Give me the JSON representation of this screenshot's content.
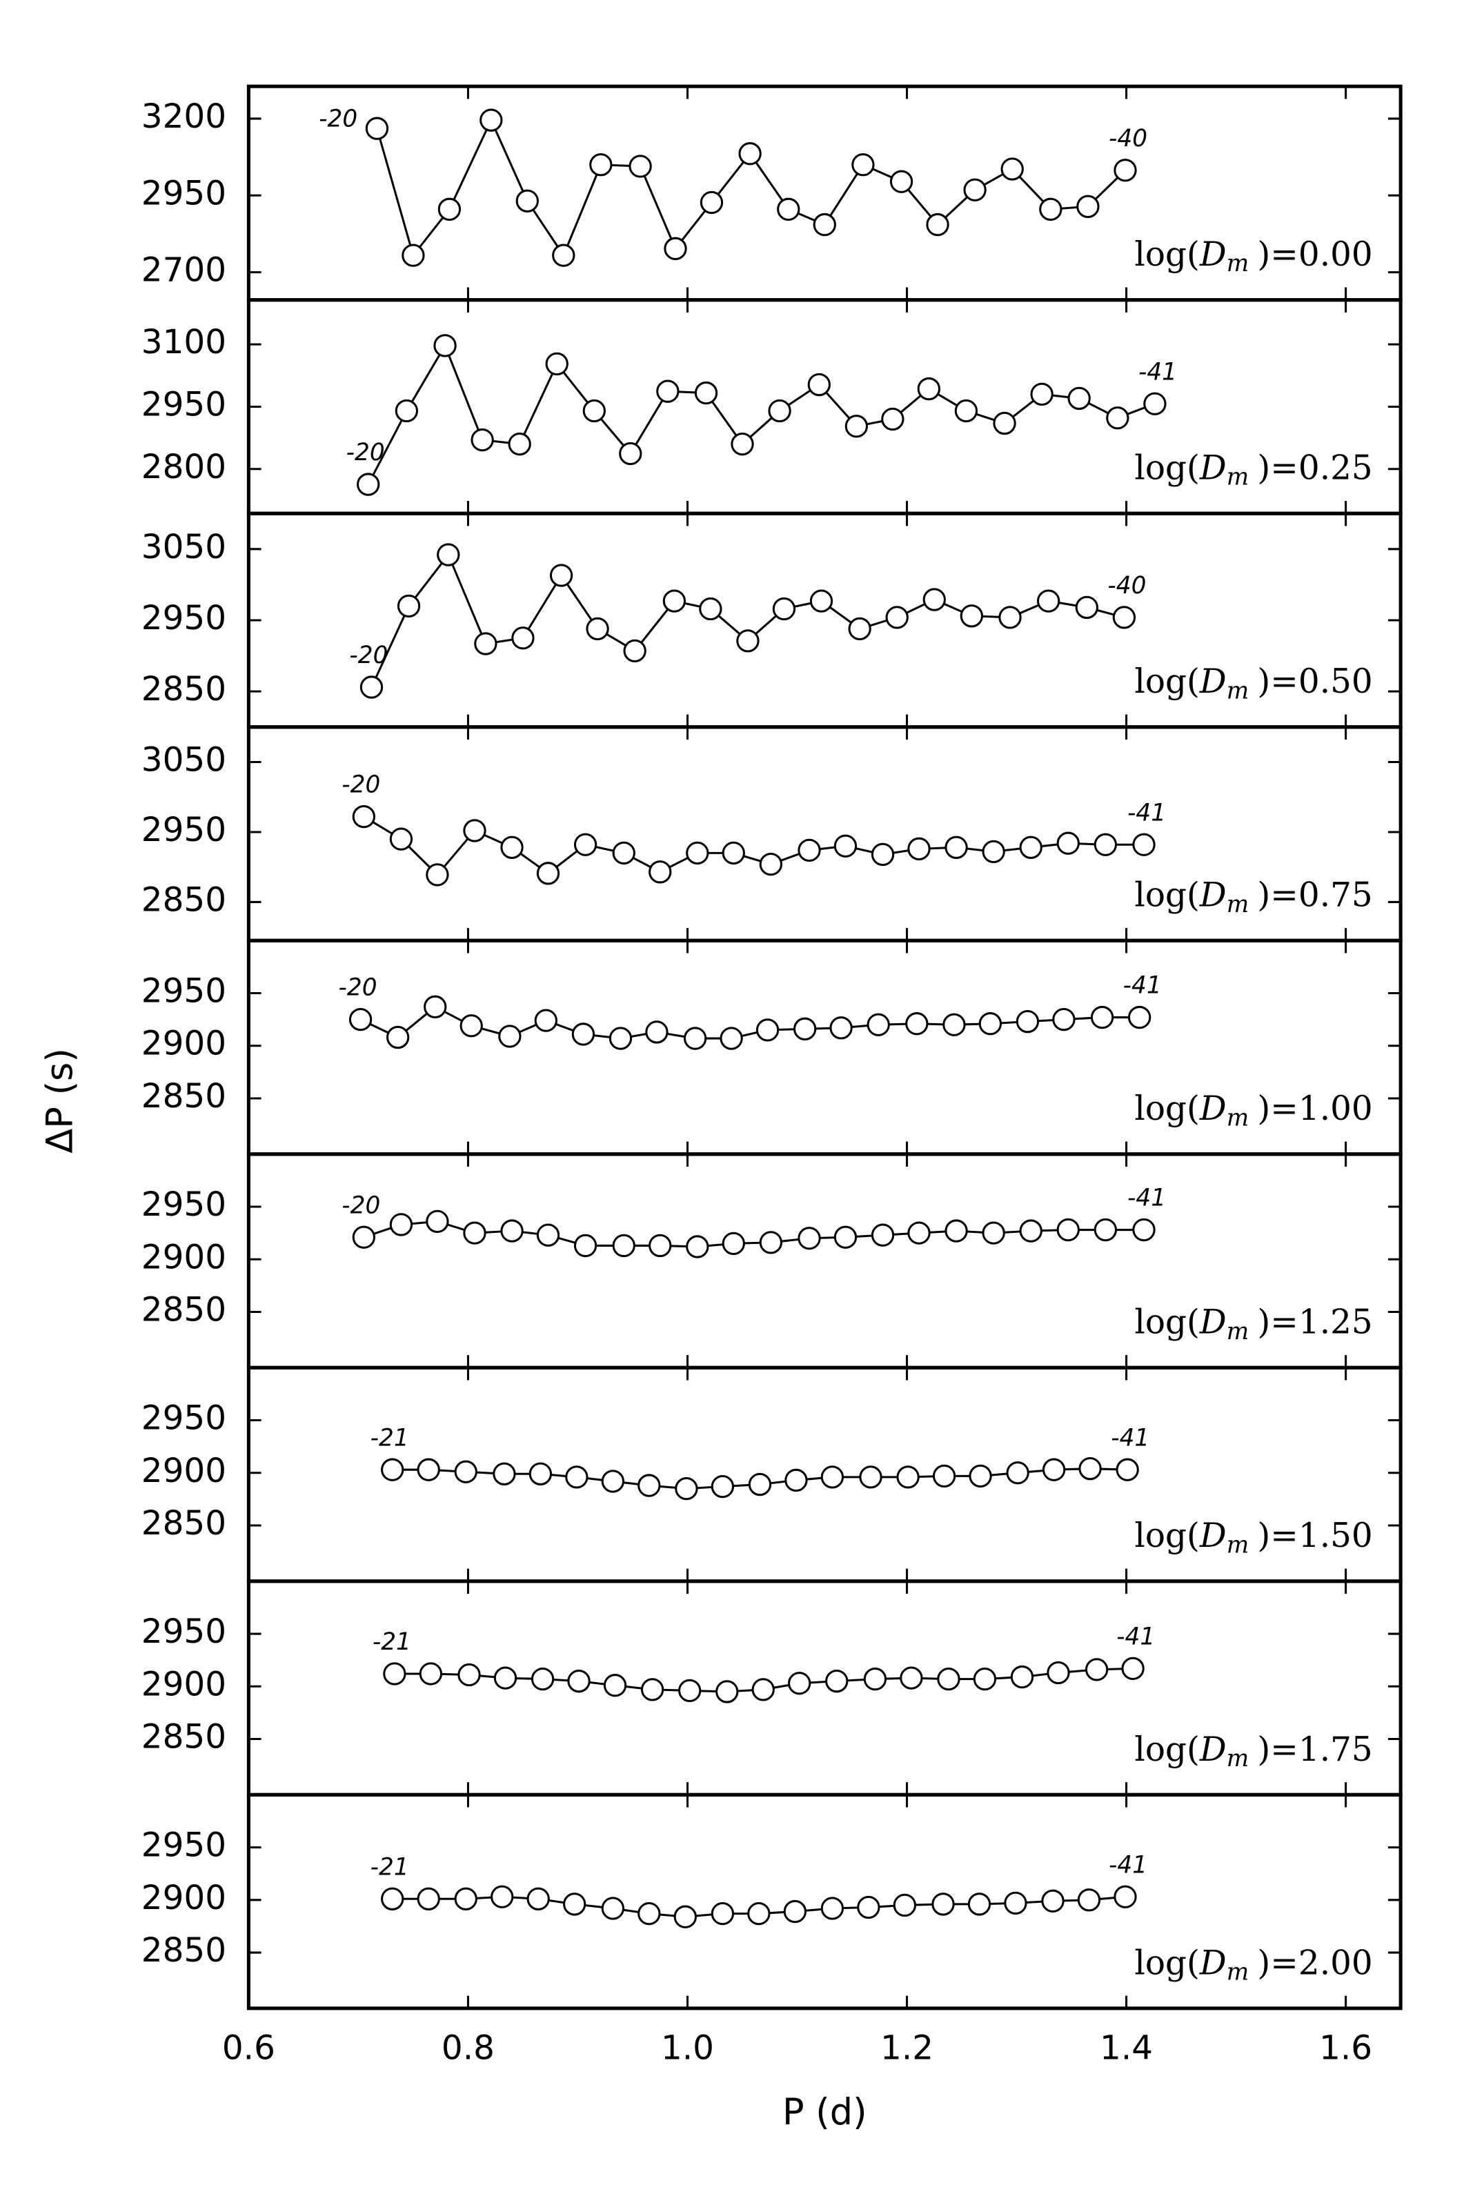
{
  "chart_data": [
    {
      "type": "line",
      "xlim": [
        0.6,
        1.65
      ],
      "ylim": [
        2610,
        3305
      ],
      "yticks": [
        2700,
        2950,
        3200
      ],
      "x": [
        0.717,
        0.75,
        0.783,
        0.821,
        0.854,
        0.887,
        0.921,
        0.957,
        0.989,
        1.022,
        1.057,
        1.092,
        1.125,
        1.16,
        1.195,
        1.228,
        1.262,
        1.296,
        1.331,
        1.365,
        1.399
      ],
      "values": [
        3168,
        2755,
        2905,
        3195,
        2932,
        2755,
        3050,
        3045,
        2777,
        2927,
        3086,
        2905,
        2855,
        3050,
        2995,
        2855,
        2968,
        3036,
        2905,
        2914,
        3032
      ],
      "annotations": [
        "-20",
        "-40"
      ],
      "label_func": "log(",
      "label_var": "D",
      "label_sub": "m",
      "label_rest": ")=0.00"
    },
    {
      "type": "line",
      "xlim": [
        0.6,
        1.65
      ],
      "ylim": [
        2693,
        3207
      ],
      "yticks": [
        2800,
        2950,
        3100
      ],
      "x": [
        0.709,
        0.744,
        0.779,
        0.813,
        0.847,
        0.881,
        0.915,
        0.948,
        0.982,
        1.017,
        1.05,
        1.084,
        1.12,
        1.154,
        1.187,
        1.22,
        1.254,
        1.289,
        1.323,
        1.357,
        1.392,
        1.426
      ],
      "values": [
        2763,
        2940,
        3097,
        2870,
        2860,
        3053,
        2940,
        2837,
        2987,
        2983,
        2860,
        2940,
        3003,
        2903,
        2920,
        2993,
        2940,
        2910,
        2980,
        2970,
        2923,
        2957
      ],
      "annotations": [
        "-20",
        "-41"
      ],
      "label_func": "log(",
      "label_var": "D",
      "label_sub": "m",
      "label_rest": ")=0.25"
    },
    {
      "type": "line",
      "xlim": [
        0.6,
        1.65
      ],
      "ylim": [
        2800,
        3100
      ],
      "yticks": [
        2850,
        2950,
        3050
      ],
      "x": [
        0.712,
        0.746,
        0.782,
        0.816,
        0.85,
        0.885,
        0.918,
        0.952,
        0.988,
        1.021,
        1.055,
        1.088,
        1.122,
        1.157,
        1.191,
        1.225,
        1.259,
        1.294,
        1.329,
        1.364,
        1.398
      ],
      "values": [
        2856,
        2970,
        3042,
        2917,
        2925,
        3013,
        2938,
        2907,
        2977,
        2966,
        2921,
        2966,
        2977,
        2938,
        2954,
        2979,
        2956,
        2954,
        2977,
        2968,
        2954
      ],
      "annotations": [
        "-20",
        "-40"
      ],
      "label_func": "log(",
      "label_var": "D",
      "label_sub": "m",
      "label_rest": ")=0.50"
    },
    {
      "type": "line",
      "xlim": [
        0.6,
        1.65
      ],
      "ylim": [
        2795,
        3100
      ],
      "yticks": [
        2850,
        2950,
        3050
      ],
      "x": [
        0.705,
        0.739,
        0.772,
        0.806,
        0.84,
        0.873,
        0.907,
        0.942,
        0.975,
        1.009,
        1.042,
        1.076,
        1.111,
        1.144,
        1.178,
        1.211,
        1.245,
        1.279,
        1.313,
        1.347,
        1.381,
        1.416
      ],
      "values": [
        2972,
        2940,
        2889,
        2952,
        2928,
        2891,
        2932,
        2920,
        2893,
        2920,
        2920,
        2904,
        2924,
        2930,
        2918,
        2926,
        2928,
        2922,
        2928,
        2934,
        2932,
        2932
      ],
      "annotations": [
        "-20",
        "-41"
      ],
      "label_func": "log(",
      "label_var": "D",
      "label_sub": "m",
      "label_rest": ")=0.75"
    },
    {
      "type": "line",
      "xlim": [
        0.6,
        1.65
      ],
      "ylim": [
        2797,
        3000
      ],
      "yticks": [
        2850,
        2900,
        2950
      ],
      "x": [
        0.702,
        0.736,
        0.77,
        0.803,
        0.838,
        0.871,
        0.905,
        0.939,
        0.972,
        1.007,
        1.04,
        1.073,
        1.107,
        1.14,
        1.174,
        1.209,
        1.243,
        1.276,
        1.31,
        1.343,
        1.378,
        1.412
      ],
      "values": [
        2925,
        2908,
        2937,
        2919,
        2909,
        2924,
        2911,
        2907,
        2913,
        2907,
        2907,
        2915,
        2916,
        2917,
        2920,
        2921,
        2920,
        2921,
        2923,
        2925,
        2927,
        2927
      ],
      "annotations": [
        "-20",
        "-41"
      ],
      "label_func": "log(",
      "label_var": "D",
      "label_sub": "m",
      "label_rest": ")=1.00",
      "ylabel": "ΔP (s)"
    },
    {
      "type": "line",
      "xlim": [
        0.6,
        1.65
      ],
      "ylim": [
        2797,
        3000
      ],
      "yticks": [
        2850,
        2900,
        2950
      ],
      "x": [
        0.705,
        0.739,
        0.772,
        0.806,
        0.84,
        0.873,
        0.907,
        0.942,
        0.975,
        1.009,
        1.042,
        1.076,
        1.111,
        1.144,
        1.178,
        1.211,
        1.245,
        1.279,
        1.313,
        1.347,
        1.381,
        1.416
      ],
      "values": [
        2921,
        2933,
        2936,
        2925,
        2927,
        2923,
        2913,
        2913,
        2913,
        2912,
        2915,
        2916,
        2920,
        2921,
        2923,
        2925,
        2927,
        2925,
        2927,
        2928,
        2928,
        2928
      ],
      "annotations": [
        "-20",
        "-41"
      ],
      "label_func": "log(",
      "label_var": "D",
      "label_sub": "m",
      "label_rest": ")=1.25"
    },
    {
      "type": "line",
      "xlim": [
        0.6,
        1.65
      ],
      "ylim": [
        2797,
        3000
      ],
      "yticks": [
        2850,
        2900,
        2950
      ],
      "x": [
        0.731,
        0.764,
        0.798,
        0.833,
        0.866,
        0.899,
        0.932,
        0.965,
        0.999,
        1.032,
        1.066,
        1.099,
        1.132,
        1.167,
        1.201,
        1.234,
        1.267,
        1.301,
        1.334,
        1.367,
        1.401
      ],
      "values": [
        2903,
        2903,
        2901,
        2899,
        2899,
        2896,
        2892,
        2888,
        2885,
        2887,
        2889,
        2893,
        2896,
        2896,
        2896,
        2897,
        2897,
        2900,
        2903,
        2904,
        2903
      ],
      "annotations": [
        "-21",
        "-41"
      ],
      "label_func": "log(",
      "label_var": "D",
      "label_sub": "m",
      "label_rest": ")=1.50"
    },
    {
      "type": "line",
      "xlim": [
        0.6,
        1.65
      ],
      "ylim": [
        2797,
        3000
      ],
      "yticks": [
        2850,
        2900,
        2950
      ],
      "x": [
        0.733,
        0.766,
        0.801,
        0.834,
        0.868,
        0.901,
        0.934,
        0.968,
        1.002,
        1.036,
        1.069,
        1.102,
        1.136,
        1.171,
        1.204,
        1.238,
        1.271,
        1.305,
        1.338,
        1.373,
        1.406
      ],
      "values": [
        2912,
        2912,
        2911,
        2908,
        2907,
        2905,
        2901,
        2897,
        2896,
        2895,
        2897,
        2903,
        2905,
        2907,
        2908,
        2907,
        2907,
        2909,
        2913,
        2916,
        2917
      ],
      "annotations": [
        "-21",
        "-41"
      ],
      "label_func": "log(",
      "label_var": "D",
      "label_sub": "m",
      "label_rest": ")=1.75"
    },
    {
      "type": "line",
      "xlim": [
        0.6,
        1.65
      ],
      "ylim": [
        2797,
        3000
      ],
      "yticks": [
        2850,
        2900,
        2950
      ],
      "x": [
        0.731,
        0.764,
        0.798,
        0.831,
        0.864,
        0.897,
        0.932,
        0.965,
        0.998,
        1.032,
        1.065,
        1.098,
        1.132,
        1.165,
        1.198,
        1.233,
        1.266,
        1.299,
        1.333,
        1.366,
        1.399
      ],
      "values": [
        2901,
        2901,
        2901,
        2903,
        2901,
        2896,
        2892,
        2887,
        2884,
        2887,
        2887,
        2889,
        2892,
        2893,
        2895,
        2896,
        2896,
        2897,
        2899,
        2900,
        2903
      ],
      "annotations": [
        "-21",
        "-41"
      ],
      "label_func": "log(",
      "label_var": "D",
      "label_sub": "m",
      "label_rest": ")=2.00",
      "xticks": [
        0.6,
        0.8,
        {
          "value": 1,
          "label": "1.0"
        },
        1.2,
        1.4,
        1.6
      ],
      "xlabel": "P (d)"
    }
  ]
}
